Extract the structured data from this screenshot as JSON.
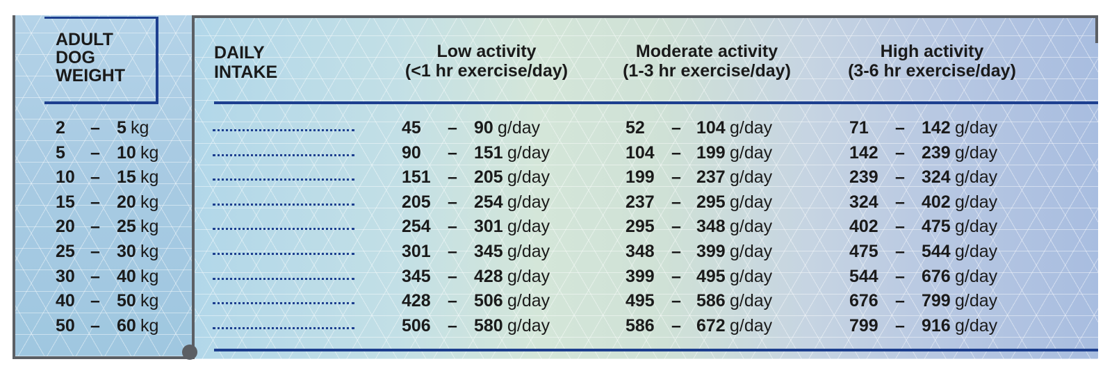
{
  "headers": {
    "weight": [
      "ADULT",
      "DOG",
      "WEIGHT"
    ],
    "intake": [
      "DAILY",
      "INTAKE"
    ],
    "low": [
      "Low activity",
      "(<1 hr exercise/day)"
    ],
    "moderate": [
      "Moderate activity",
      "(1-3 hr exercise/day)"
    ],
    "high": [
      "High activity",
      "(3-6 hr exercise/day)"
    ]
  },
  "separator": "–",
  "weight_unit": "kg",
  "intake_unit": "g/day",
  "rows": [
    {
      "weight": [
        "2",
        "5"
      ],
      "low": [
        "45",
        "90"
      ],
      "moderate": [
        "52",
        "104"
      ],
      "high": [
        "71",
        "142"
      ]
    },
    {
      "weight": [
        "5",
        "10"
      ],
      "low": [
        "90",
        "151"
      ],
      "moderate": [
        "104",
        "199"
      ],
      "high": [
        "142",
        "239"
      ]
    },
    {
      "weight": [
        "10",
        "15"
      ],
      "low": [
        "151",
        "205"
      ],
      "moderate": [
        "199",
        "237"
      ],
      "high": [
        "239",
        "324"
      ]
    },
    {
      "weight": [
        "15",
        "20"
      ],
      "low": [
        "205",
        "254"
      ],
      "moderate": [
        "237",
        "295"
      ],
      "high": [
        "324",
        "402"
      ]
    },
    {
      "weight": [
        "20",
        "25"
      ],
      "low": [
        "254",
        "301"
      ],
      "moderate": [
        "295",
        "348"
      ],
      "high": [
        "402",
        "475"
      ]
    },
    {
      "weight": [
        "25",
        "30"
      ],
      "low": [
        "301",
        "345"
      ],
      "moderate": [
        "348",
        "399"
      ],
      "high": [
        "475",
        "544"
      ]
    },
    {
      "weight": [
        "30",
        "40"
      ],
      "low": [
        "345",
        "428"
      ],
      "moderate": [
        "399",
        "495"
      ],
      "high": [
        "544",
        "676"
      ]
    },
    {
      "weight": [
        "40",
        "50"
      ],
      "low": [
        "428",
        "506"
      ],
      "moderate": [
        "495",
        "586"
      ],
      "high": [
        "676",
        "799"
      ]
    },
    {
      "weight": [
        "50",
        "60"
      ],
      "low": [
        "506",
        "580"
      ],
      "moderate": [
        "586",
        "672"
      ],
      "high": [
        "799",
        "916"
      ]
    }
  ],
  "colors": {
    "accent_blue": "#1d3f8f",
    "frame_gray": "#5b5f64"
  }
}
